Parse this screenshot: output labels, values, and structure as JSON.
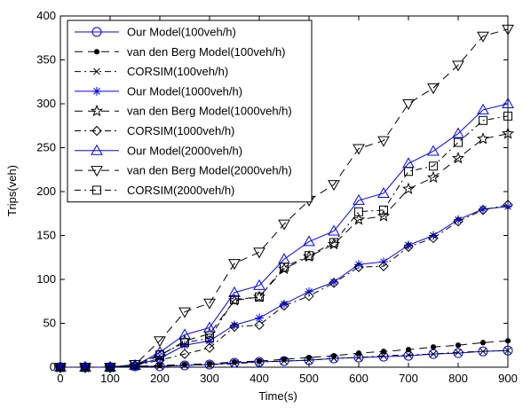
{
  "chart_data": {
    "type": "line",
    "title": "",
    "xlabel": "Time(s)",
    "ylabel": "Trips(veh)",
    "xlim": [
      0,
      900
    ],
    "ylim": [
      0,
      400
    ],
    "xticks": [
      0,
      100,
      200,
      300,
      400,
      500,
      600,
      700,
      800,
      900
    ],
    "yticks": [
      0,
      50,
      100,
      150,
      200,
      250,
      300,
      350,
      400
    ],
    "x": [
      0,
      50,
      100,
      150,
      200,
      250,
      300,
      350,
      400,
      450,
      500,
      550,
      600,
      650,
      700,
      750,
      800,
      850,
      900
    ],
    "grid": false,
    "legend_position": "top-left",
    "series": [
      {
        "name": "Our Model(100veh/h)",
        "color": "#0000ff",
        "dash": "solid",
        "marker": "circle",
        "values": [
          0,
          0,
          0,
          1,
          1,
          2,
          3,
          5,
          6,
          7,
          8,
          10,
          11,
          12,
          13,
          15,
          16,
          18,
          19
        ]
      },
      {
        "name": "van den Berg Model(100veh/h)",
        "color": "#000000",
        "dash": "longdash",
        "marker": "dot",
        "values": [
          0,
          0,
          0,
          1,
          2,
          3,
          4,
          6,
          7,
          9,
          11,
          13,
          16,
          18,
          20,
          23,
          25,
          28,
          30
        ]
      },
      {
        "name": "CORSIM(100veh/h)",
        "color": "#000000",
        "dash": "dashdot",
        "marker": "x",
        "values": [
          0,
          0,
          0,
          1,
          1,
          2,
          3,
          4,
          6,
          7,
          8,
          10,
          11,
          13,
          14,
          15,
          17,
          18,
          19
        ]
      },
      {
        "name": "Our Model(1000veh/h)",
        "color": "#0000ff",
        "dash": "solid",
        "marker": "star",
        "values": [
          0,
          0,
          0,
          2,
          10,
          25,
          30,
          48,
          56,
          72,
          86,
          97,
          117,
          120,
          139,
          150,
          168,
          180,
          183
        ]
      },
      {
        "name": "van den Berg Model(1000veh/h)",
        "color": "#000000",
        "dash": "longdash",
        "marker": "pentagram",
        "values": [
          0,
          0,
          0,
          2,
          13,
          30,
          38,
          76,
          80,
          112,
          126,
          140,
          168,
          172,
          203,
          216,
          238,
          260,
          266
        ]
      },
      {
        "name": "CORSIM(1000veh/h)",
        "color": "#000000",
        "dash": "dashdot",
        "marker": "diamond",
        "values": [
          0,
          0,
          0,
          2,
          8,
          15,
          22,
          46,
          48,
          70,
          81,
          96,
          114,
          115,
          137,
          147,
          166,
          179,
          185
        ]
      },
      {
        "name": "Our Model(2000veh/h)",
        "color": "#0000ff",
        "dash": "solid",
        "marker": "triangle-up",
        "values": [
          0,
          0,
          0,
          2,
          17,
          37,
          45,
          85,
          93,
          123,
          143,
          155,
          190,
          198,
          232,
          246,
          266,
          293,
          300
        ]
      },
      {
        "name": "van den Berg Model(2000veh/h)",
        "color": "#000000",
        "dash": "longdash",
        "marker": "triangle-down",
        "values": [
          0,
          0,
          0,
          3,
          30,
          63,
          73,
          118,
          131,
          163,
          190,
          208,
          249,
          258,
          300,
          318,
          344,
          377,
          385
        ]
      },
      {
        "name": "CORSIM(2000veh/h)",
        "color": "#000000",
        "dash": "dashdot",
        "marker": "square",
        "values": [
          0,
          0,
          0,
          3,
          14,
          28,
          33,
          77,
          80,
          114,
          127,
          142,
          177,
          179,
          223,
          229,
          256,
          281,
          286
        ]
      }
    ]
  }
}
